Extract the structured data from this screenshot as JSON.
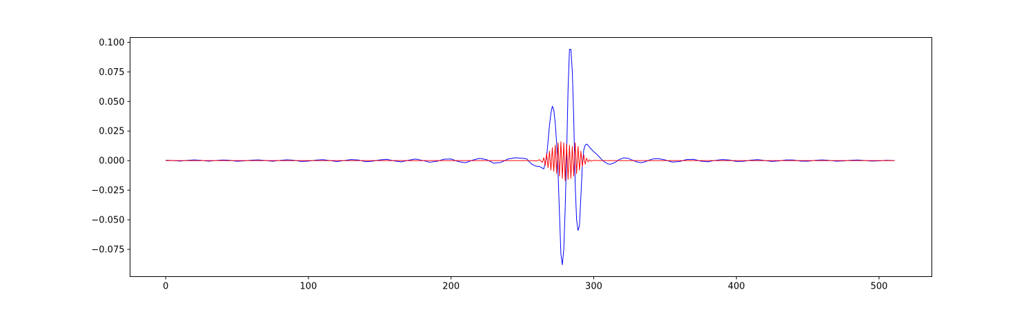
{
  "chart_data": {
    "type": "line",
    "title": "",
    "xlabel": "",
    "ylabel": "",
    "xlim": [
      -25,
      537
    ],
    "ylim": [
      -0.098,
      0.104
    ],
    "grid": false,
    "legend": "none",
    "x_ticks": [
      {
        "value": 0,
        "label": "0"
      },
      {
        "value": 100,
        "label": "100"
      },
      {
        "value": 200,
        "label": "200"
      },
      {
        "value": 300,
        "label": "300"
      },
      {
        "value": 400,
        "label": "400"
      },
      {
        "value": 500,
        "label": "500"
      }
    ],
    "y_ticks": [
      {
        "value": 0.1,
        "label": "0.100"
      },
      {
        "value": 0.075,
        "label": "0.075"
      },
      {
        "value": 0.05,
        "label": "0.050"
      },
      {
        "value": 0.025,
        "label": "0.025"
      },
      {
        "value": 0.0,
        "label": "0.000"
      },
      {
        "value": -0.025,
        "label": "−0.025"
      },
      {
        "value": -0.05,
        "label": "−0.050"
      },
      {
        "value": -0.075,
        "label": "−0.075"
      }
    ],
    "series": [
      {
        "color": "#0000ff",
        "points": [
          [
            0,
            0.0003
          ],
          [
            5,
            0.0001
          ],
          [
            10,
            -0.0004
          ],
          [
            15,
            0.0002
          ],
          [
            20,
            0.0006
          ],
          [
            25,
            0.0002
          ],
          [
            30,
            -0.0005
          ],
          [
            35,
            0.0001
          ],
          [
            40,
            0.0005
          ],
          [
            45,
            0.0003
          ],
          [
            50,
            -0.0006
          ],
          [
            55,
            -0.0002
          ],
          [
            60,
            0.0004
          ],
          [
            65,
            0.0006
          ],
          [
            70,
            0.0001
          ],
          [
            75,
            -0.0006
          ],
          [
            80,
            0.0002
          ],
          [
            85,
            0.0007
          ],
          [
            90,
            0.0003
          ],
          [
            95,
            -0.0007
          ],
          [
            100,
            -0.0004
          ],
          [
            105,
            0.0004
          ],
          [
            110,
            0.0008
          ],
          [
            115,
            0.0001
          ],
          [
            120,
            -0.0008
          ],
          [
            125,
            0.0001
          ],
          [
            130,
            0.0009
          ],
          [
            135,
            0.0005
          ],
          [
            140,
            -0.0009
          ],
          [
            145,
            -0.0005
          ],
          [
            150,
            0.0006
          ],
          [
            155,
            0.0011
          ],
          [
            160,
            -0.0002
          ],
          [
            165,
            -0.0011
          ],
          [
            170,
            0.0003
          ],
          [
            175,
            0.0013
          ],
          [
            180,
            0.0002
          ],
          [
            185,
            -0.0014
          ],
          [
            190,
            -0.0006
          ],
          [
            195,
            0.0012
          ],
          [
            200,
            0.0014
          ],
          [
            205,
            -0.0008
          ],
          [
            210,
            -0.0018
          ],
          [
            215,
            0.0004
          ],
          [
            220,
            0.0019
          ],
          [
            225,
            0.0008
          ],
          [
            230,
            -0.0022
          ],
          [
            235,
            -0.0015
          ],
          [
            240,
            0.0014
          ],
          [
            245,
            0.0024
          ],
          [
            250,
            0.002
          ],
          [
            253,
            0.0015
          ],
          [
            256,
            -0.0025
          ],
          [
            259,
            -0.0045
          ],
          [
            262,
            -0.005
          ],
          [
            265,
            -0.007
          ],
          [
            267,
            0.003
          ],
          [
            269,
            0.03
          ],
          [
            270,
            0.04
          ],
          [
            271,
            0.046
          ],
          [
            272,
            0.043
          ],
          [
            273,
            0.032
          ],
          [
            274,
            0.015
          ],
          [
            275,
            -0.01
          ],
          [
            276,
            -0.045
          ],
          [
            277,
            -0.079
          ],
          [
            278,
            -0.088
          ],
          [
            279,
            -0.075
          ],
          [
            280,
            -0.04
          ],
          [
            281,
            0.005
          ],
          [
            282,
            0.06
          ],
          [
            283,
            0.094
          ],
          [
            284,
            0.094
          ],
          [
            285,
            0.075
          ],
          [
            286,
            0.035
          ],
          [
            287,
            -0.02
          ],
          [
            288,
            -0.05
          ],
          [
            289,
            -0.059
          ],
          [
            290,
            -0.055
          ],
          [
            291,
            -0.03
          ],
          [
            292,
            -0.005
          ],
          [
            293,
            0.009
          ],
          [
            294,
            0.013
          ],
          [
            295,
            0.014
          ],
          [
            296,
            0.013
          ],
          [
            298,
            0.01
          ],
          [
            300,
            0.0075
          ],
          [
            302,
            0.0055
          ],
          [
            304,
            0.003
          ],
          [
            306,
            0.0005
          ],
          [
            308,
            -0.0015
          ],
          [
            310,
            -0.0028
          ],
          [
            312,
            -0.003
          ],
          [
            315,
            -0.0015
          ],
          [
            318,
            0.001
          ],
          [
            321,
            0.0023
          ],
          [
            324,
            0.002
          ],
          [
            327,
            0.0005
          ],
          [
            330,
            -0.001
          ],
          [
            333,
            -0.0018
          ],
          [
            336,
            -0.001
          ],
          [
            339,
            0.0005
          ],
          [
            342,
            0.0015
          ],
          [
            345,
            0.0017
          ],
          [
            350,
            0.0006
          ],
          [
            355,
            -0.0012
          ],
          [
            360,
            -0.0008
          ],
          [
            365,
            0.0009
          ],
          [
            370,
            0.0011
          ],
          [
            375,
            -0.0004
          ],
          [
            380,
            -0.001
          ],
          [
            385,
            0.0002
          ],
          [
            390,
            0.0009
          ],
          [
            395,
            0.0005
          ],
          [
            400,
            -0.0007
          ],
          [
            405,
            -0.0006
          ],
          [
            410,
            0.0004
          ],
          [
            415,
            0.0008
          ],
          [
            420,
            0.0001
          ],
          [
            425,
            -0.0007
          ],
          [
            430,
            -0.0002
          ],
          [
            435,
            0.0006
          ],
          [
            440,
            0.0005
          ],
          [
            445,
            -0.0004
          ],
          [
            450,
            -0.0005
          ],
          [
            455,
            0.0002
          ],
          [
            460,
            0.0006
          ],
          [
            465,
            0.0002
          ],
          [
            470,
            -0.0005
          ],
          [
            475,
            -0.0003
          ],
          [
            480,
            0.0003
          ],
          [
            485,
            0.0005
          ],
          [
            490,
            0.0001
          ],
          [
            495,
            -0.0004
          ],
          [
            500,
            -0.0002
          ],
          [
            505,
            0.0003
          ],
          [
            511,
            0.0001
          ]
        ]
      },
      {
        "color": "#ff0000",
        "points": [
          [
            0,
            0.0
          ],
          [
            250,
            0.0
          ],
          [
            255,
            0.0
          ],
          [
            260,
            -0.0003
          ],
          [
            262,
            0.0008
          ],
          [
            264,
            -0.0015
          ],
          [
            265,
            0.0025
          ],
          [
            266,
            -0.004
          ],
          [
            267,
            0.006
          ],
          [
            268,
            -0.006
          ],
          [
            269,
            0.008
          ],
          [
            270,
            -0.008
          ],
          [
            271,
            0.011
          ],
          [
            272,
            -0.009
          ],
          [
            273,
            0.013
          ],
          [
            274,
            -0.011
          ],
          [
            275,
            0.015
          ],
          [
            276,
            -0.013
          ],
          [
            277,
            0.016
          ],
          [
            278,
            -0.015
          ],
          [
            279,
            0.015
          ],
          [
            280,
            -0.017
          ],
          [
            281,
            0.014
          ],
          [
            282,
            -0.016
          ],
          [
            283,
            0.013
          ],
          [
            284,
            -0.015
          ],
          [
            285,
            0.012
          ],
          [
            286,
            -0.013
          ],
          [
            287,
            0.015
          ],
          [
            288,
            -0.011
          ],
          [
            289,
            0.012
          ],
          [
            290,
            -0.008
          ],
          [
            291,
            0.008
          ],
          [
            292,
            -0.005
          ],
          [
            293,
            0.005
          ],
          [
            294,
            -0.003
          ],
          [
            295,
            0.002
          ],
          [
            296,
            -0.001
          ],
          [
            297,
            0.0007
          ],
          [
            298,
            -0.0004
          ],
          [
            300,
            0.0002
          ],
          [
            305,
            0.0
          ],
          [
            511,
            0.0
          ]
        ]
      }
    ]
  }
}
